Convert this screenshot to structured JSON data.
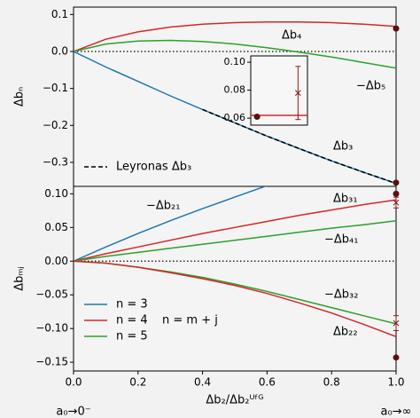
{
  "chart_data": [
    {
      "type": "line",
      "ylabel": "Δbₙ",
      "x": [
        0,
        0.1,
        0.2,
        0.3,
        0.4,
        0.5,
        0.6,
        0.7,
        0.8,
        0.9,
        1.0
      ],
      "xlim": [
        0,
        1
      ],
      "ylim": [
        -0.365,
        0.12
      ],
      "yticks": [
        {
          "value": 0.1,
          "label": "0.1"
        },
        {
          "value": 0,
          "label": "0.0"
        },
        {
          "value": -0.1,
          "label": "−0.1"
        },
        {
          "value": -0.2,
          "label": "−0.2"
        },
        {
          "value": -0.3,
          "label": "−0.3"
        }
      ],
      "zero_line": true,
      "series": [
        {
          "name": "Δb₄",
          "color": "#d62728",
          "values": [
            0,
            0.033,
            0.053,
            0.066,
            0.074,
            0.078,
            0.08,
            0.08,
            0.078,
            0.074,
            0.068
          ]
        },
        {
          "name": "−Δb₅",
          "color": "#2ca02c",
          "values": [
            0,
            0.02,
            0.028,
            0.03,
            0.027,
            0.02,
            0.01,
            -0.002,
            -0.015,
            -0.03,
            -0.045
          ]
        },
        {
          "name": "Δb₃",
          "color": "#1f77b4",
          "values": [
            0,
            -0.042,
            -0.081,
            -0.12,
            -0.157,
            -0.193,
            -0.229,
            -0.263,
            -0.296,
            -0.327,
            -0.357
          ]
        },
        {
          "color": "#000000",
          "style": "dashed",
          "values": [
            null,
            null,
            null,
            null,
            -0.157,
            -0.193,
            -0.229,
            -0.263,
            -0.296,
            -0.327,
            -0.357
          ]
        }
      ],
      "points": [
        {
          "x": 1,
          "y": 0.062,
          "color": "#5a1010"
        },
        {
          "x": 1,
          "y": -0.355,
          "color": "#5a1010"
        }
      ],
      "legend": [
        {
          "name": "Leyronas Δb₃",
          "color": "#000000",
          "style": "dashed"
        }
      ]
    },
    {
      "type": "line",
      "ylabel": "Δbₘⱼ",
      "xlabel": "Δb₂/Δb₂ᵁᶠᴳ",
      "xlabel_left": "a₀→0⁻",
      "xlabel_right": "a₀→∞",
      "x": [
        0,
        0.1,
        0.2,
        0.3,
        0.4,
        0.5,
        0.6,
        0.7,
        0.8,
        0.9,
        1.0
      ],
      "xlim": [
        0,
        1
      ],
      "ylim": [
        -0.163,
        0.111
      ],
      "xticks": [
        {
          "value": 0,
          "label": "0.0"
        },
        {
          "value": 0.2,
          "label": "0.2"
        },
        {
          "value": 0.4,
          "label": "0.4"
        },
        {
          "value": 0.6,
          "label": "0.6"
        },
        {
          "value": 0.8,
          "label": "0.8"
        },
        {
          "value": 1,
          "label": "1.0"
        }
      ],
      "yticks": [
        {
          "value": 0.1,
          "label": "0.10"
        },
        {
          "value": 0.05,
          "label": "0.05"
        },
        {
          "value": 0,
          "label": "0.00"
        },
        {
          "value": -0.05,
          "label": "−0.05"
        },
        {
          "value": -0.1,
          "label": "−0.10"
        },
        {
          "value": -0.15,
          "label": "−0.15"
        }
      ],
      "zero_line": true,
      "series": [
        {
          "name": "−Δb₂₁",
          "color": "#1f77b4",
          "values": [
            0,
            0.021,
            0.041,
            0.06,
            0.078,
            0.095,
            0.112,
            null,
            null,
            null,
            null
          ]
        },
        {
          "name": "Δb₃₁",
          "color": "#d62728",
          "values": [
            0,
            0.011,
            0.021,
            0.031,
            0.041,
            0.05,
            0.059,
            0.068,
            0.076,
            0.084,
            0.091
          ]
        },
        {
          "name": "−Δb₄₁",
          "color": "#2ca02c",
          "values": [
            0,
            0.007,
            0.013,
            0.019,
            0.025,
            0.031,
            0.037,
            0.043,
            0.049,
            0.054,
            0.06
          ]
        },
        {
          "name": "−Δb₃₂",
          "color": "#2ca02c",
          "values": [
            0,
            -0.003,
            -0.009,
            -0.016,
            -0.024,
            -0.034,
            -0.045,
            -0.057,
            -0.069,
            -0.081,
            -0.093
          ]
        },
        {
          "name": "Δb₂₂",
          "color": "#d62728",
          "values": [
            0,
            -0.003,
            -0.009,
            -0.017,
            -0.026,
            -0.036,
            -0.048,
            -0.062,
            -0.077,
            -0.094,
            -0.112
          ]
        }
      ],
      "points": [
        {
          "x": 1,
          "y": 0.1,
          "color": "#5a1010"
        },
        {
          "x": 1,
          "y": -0.143,
          "color": "#5a1010"
        }
      ],
      "errorbars": [
        {
          "x": 1,
          "y": 0.087,
          "error": 0.008,
          "color": "#8b1a1a"
        },
        {
          "x": 1,
          "y": -0.092,
          "error": 0.011,
          "color": "#8b1a1a"
        }
      ],
      "legend": [
        {
          "name": "n = 3",
          "color": "#1f77b4"
        },
        {
          "name": "n = 4",
          "color": "#d62728"
        },
        {
          "name": "n = 5",
          "color": "#2ca02c"
        }
      ],
      "legend_note": "n = m + j"
    },
    {
      "type": "line",
      "x": [
        0.985,
        1.003
      ],
      "xlim": [
        0.985,
        1.003
      ],
      "ylim": [
        0.055,
        0.1045
      ],
      "yticks": [
        {
          "value": 0.06,
          "label": "0.06"
        },
        {
          "value": 0.08,
          "label": "0.08"
        },
        {
          "value": 0.1,
          "label": "0.10"
        }
      ],
      "series": [
        {
          "color": "#d62728",
          "values": [
            0.062,
            0.062
          ]
        }
      ],
      "points": [
        {
          "x": 0.987,
          "y": 0.061,
          "color": "#5a1010"
        }
      ],
      "errorbars": [
        {
          "x": 1.0,
          "y": 0.078,
          "error": 0.019,
          "color": "#8b1a1a"
        }
      ]
    }
  ]
}
